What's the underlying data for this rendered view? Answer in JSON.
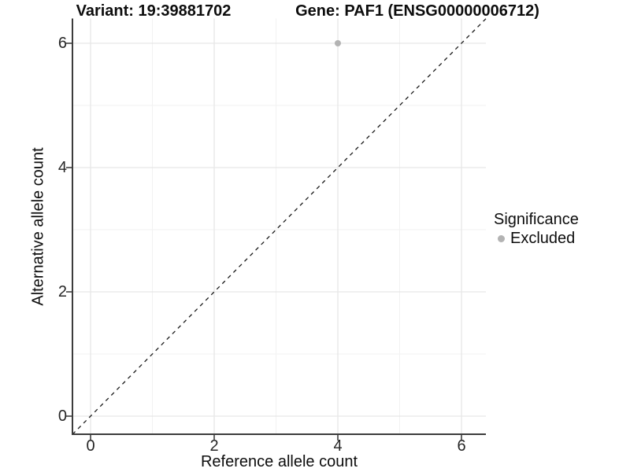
{
  "chart_data": {
    "type": "scatter",
    "titles": {
      "left": "Variant: 19:39881702",
      "right": "Gene: PAF1 (ENSG00000006712)"
    },
    "xlabel": "Reference allele count",
    "ylabel": "Alternative allele count",
    "xticks": [
      0,
      2,
      4,
      6
    ],
    "yticks": [
      0,
      2,
      4,
      6
    ],
    "xlim": [
      -0.3,
      6.4
    ],
    "ylim": [
      -0.3,
      6.4
    ],
    "grid": {
      "major": [
        0,
        2,
        4,
        6
      ],
      "minor": [
        1,
        3,
        5
      ]
    },
    "reference_line": {
      "type": "identity",
      "slope": 1,
      "intercept": 0,
      "style": "dashed",
      "color": "#1a1a1a"
    },
    "series": [
      {
        "name": "Excluded",
        "color": "#b3b3b3",
        "points": [
          {
            "x": 4,
            "y": 6
          }
        ]
      }
    ],
    "legend": {
      "title": "Significance",
      "position": "right",
      "items": [
        {
          "label": "Excluded",
          "color": "#b3b3b3",
          "marker": "circle"
        }
      ]
    },
    "colors": {
      "background": "#ffffff",
      "grid_major": "#e6e6e6",
      "grid_minor": "#f2f2f2",
      "axis_line": "#3c3c3c",
      "tick_mark": "#333333",
      "tick_text": "#262626",
      "text": "#0d0d0d"
    }
  }
}
